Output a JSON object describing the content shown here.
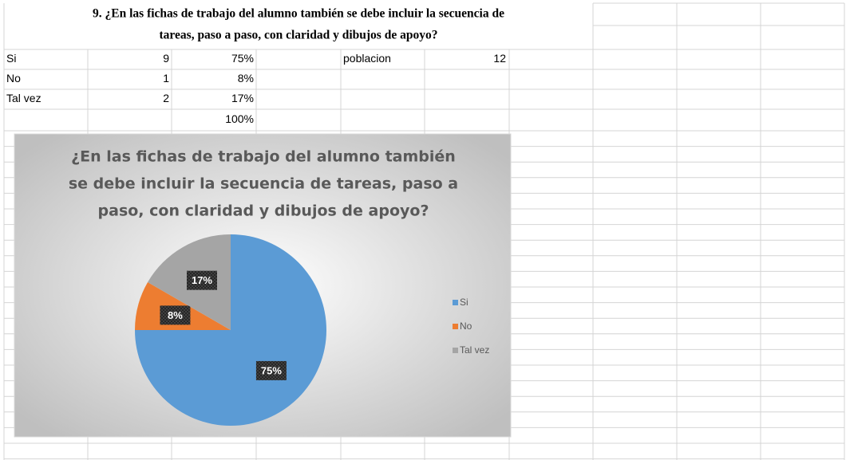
{
  "sheet": {
    "title_lines": [
      "9. ¿En las fichas de trabajo del alumno también se debe incluir la secuencia de",
      "tareas, paso a paso, con claridad y dibujos de apoyo?"
    ],
    "rows": [
      {
        "label": "Si",
        "count": 9,
        "percent": "75%"
      },
      {
        "label": "No",
        "count": 1,
        "percent": "8%"
      },
      {
        "label": "Tal vez",
        "count": 2,
        "percent": "17%"
      }
    ],
    "total": "100%",
    "population": {
      "label": "poblacion",
      "value": 12
    }
  },
  "chart_data": {
    "type": "pie",
    "title_lines": [
      "¿En las fichas de trabajo del alumno también",
      "se debe incluir la secuencia de tareas, paso a",
      "paso, con claridad y dibujos de apoyo?"
    ],
    "categories": [
      "Si",
      "No",
      "Tal vez"
    ],
    "values": [
      75,
      8.33,
      16.67
    ],
    "value_labels": [
      "75%",
      "8%",
      "17%"
    ],
    "colors": [
      "#5b9bd5",
      "#ed7d31",
      "#a5a5a5"
    ],
    "legend": "right"
  }
}
